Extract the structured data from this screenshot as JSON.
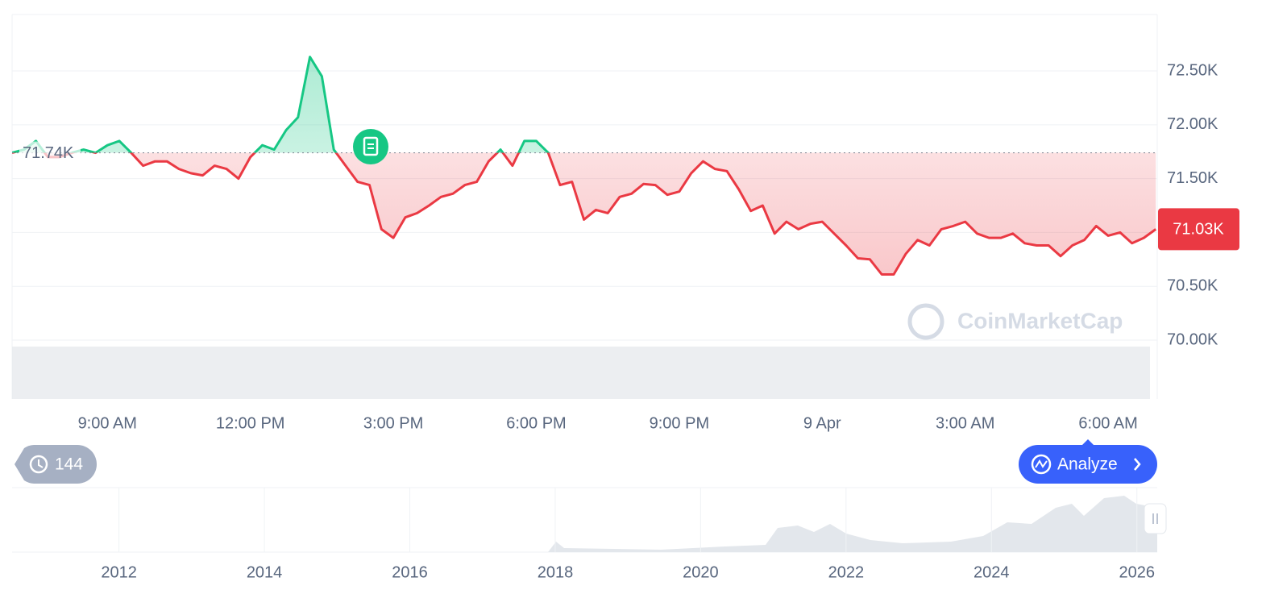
{
  "chart_data": {
    "type": "line",
    "x": [
      7,
      7.25,
      7.5,
      7.75,
      8,
      8.25,
      8.5,
      8.75,
      9,
      9.25,
      9.5,
      9.75,
      10,
      10.25,
      10.5,
      10.75,
      11,
      11.25,
      11.5,
      11.75,
      12,
      12.25,
      12.5,
      12.75,
      13,
      13.25,
      13.5,
      13.75,
      14,
      14.25,
      14.5,
      14.75,
      15,
      15.25,
      15.5,
      15.75,
      16,
      16.25,
      16.5,
      16.75,
      17,
      17.25,
      17.5,
      17.75,
      18,
      18.25,
      18.5,
      18.75,
      19,
      19.25,
      19.5,
      19.75,
      20,
      20.25,
      20.5,
      20.75,
      21,
      21.25,
      21.5,
      21.75,
      22,
      22.25,
      22.5,
      22.75,
      23,
      23.25,
      23.5,
      23.75,
      24,
      24.25,
      24.5,
      24.75,
      25,
      25.25,
      25.5,
      25.75,
      26,
      26.25,
      26.5,
      26.75,
      27,
      27.25,
      27.5,
      27.75,
      28,
      28.25,
      28.5,
      28.75,
      29,
      29.25,
      29.5,
      29.75,
      30,
      30.25,
      30.5,
      30.75,
      31
    ],
    "series": [
      {
        "color": "#ea3943",
        "values": [
          71740,
          71770,
          71850,
          71700,
          71700,
          71740,
          71770,
          71740,
          71810,
          71850,
          71740,
          71620,
          71660,
          71660,
          71590,
          71550,
          71530,
          71620,
          71590,
          71500,
          71700,
          71810,
          71770,
          71950,
          72070,
          72630,
          72450,
          71770,
          71620,
          71470,
          71440,
          71030,
          70950,
          71140,
          71180,
          71250,
          71330,
          71360,
          71440,
          71470,
          71660,
          71770,
          71620,
          71850,
          71850,
          71740,
          71440,
          71470,
          71120,
          71210,
          71180,
          71330,
          71360,
          71450,
          71440,
          71350,
          71380,
          71550,
          71660,
          71590,
          71570,
          71400,
          71200,
          71250,
          70990,
          71100,
          71030,
          71080,
          71100,
          70990,
          70880,
          70760,
          70750,
          70610,
          70610,
          70800,
          70930,
          70880,
          71030,
          71060,
          71100,
          70990,
          70950,
          70950,
          70990,
          70900,
          70880,
          70880,
          70780,
          70880,
          70930,
          71060,
          70970,
          71000,
          70900,
          70950,
          71030
        ]
      }
    ],
    "up_color": "#16c784",
    "baseline": {
      "value": 71740,
      "label": "71.74K"
    },
    "price_tag": {
      "value": 71030,
      "label": "71.03K"
    },
    "xlim": [
      7,
      31.03
    ],
    "xticks": [
      {
        "value": 9,
        "label": "9:00 AM"
      },
      {
        "value": 12,
        "label": "12:00 PM"
      },
      {
        "value": 15,
        "label": "3:00 PM"
      },
      {
        "value": 18,
        "label": "6:00 PM"
      },
      {
        "value": 21,
        "label": "9:00 PM"
      },
      {
        "value": 24,
        "label": "9 Apr"
      },
      {
        "value": 27,
        "label": "3:00 AM"
      },
      {
        "value": 30,
        "label": "6:00 AM"
      }
    ],
    "ylim": [
      69454,
      73024
    ],
    "yticks": [
      {
        "value": 70000,
        "label": "70.00K"
      },
      {
        "value": 70500,
        "label": "70.50K"
      },
      {
        "value": 71000,
        "label": "71.00K"
      },
      {
        "value": 71500,
        "label": "71.50K"
      },
      {
        "value": 72000,
        "label": "72.00K"
      },
      {
        "value": 72500,
        "label": "72.50K"
      }
    ],
    "grid": true,
    "navigator": {
      "xlim": [
        2010.53,
        2026.28
      ],
      "xticks": [
        2012,
        2014,
        2016,
        2018,
        2020,
        2022,
        2024,
        2026
      ]
    }
  },
  "ui": {
    "history_button": 144,
    "analyze_button": "Analyze",
    "watermark": "CoinMarketCap"
  }
}
